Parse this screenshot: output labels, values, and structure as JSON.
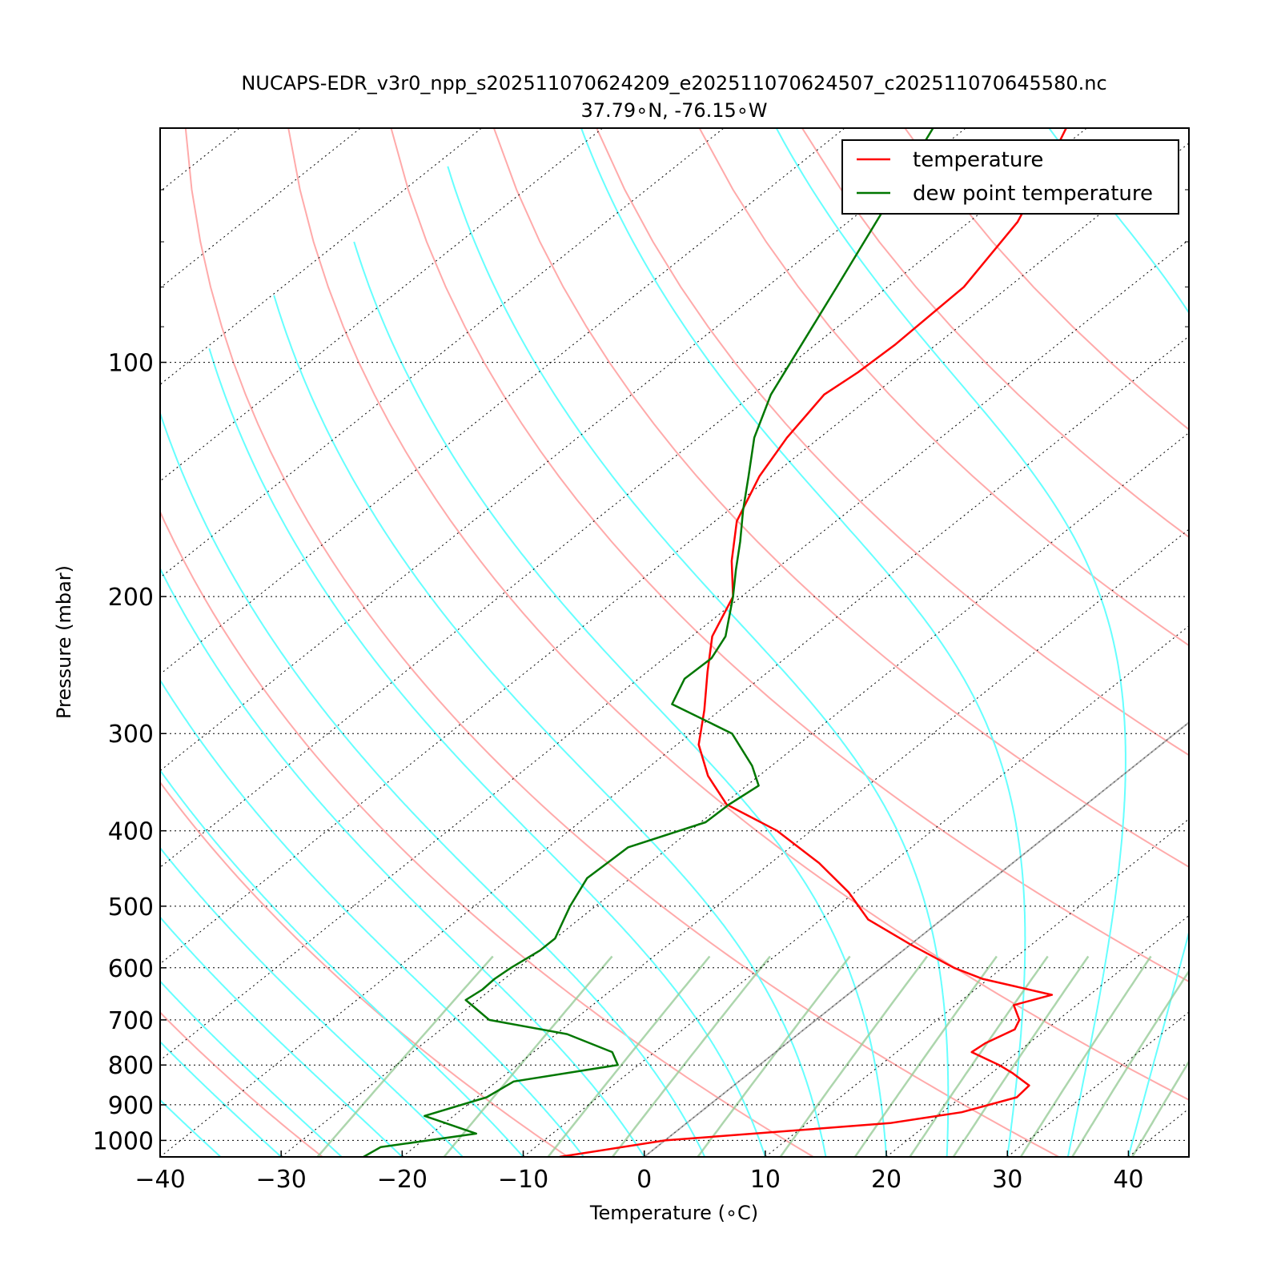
{
  "chart_data": {
    "type": "line",
    "title": "NUCAPS-EDR_v3r0_npp_s202511070624209_e202511070624507_c202511070645580.nc",
    "subtitle": "37.79∘N, -76.15∘W",
    "xlabel": "Temperature (∘C)",
    "ylabel": "Pressure (mbar)",
    "xlim": [
      -40,
      45
    ],
    "ylim": [
      1050,
      50
    ],
    "yscale": "log",
    "skew": true,
    "grid": true,
    "legend_position": "top-right",
    "x_ticks": [
      -40,
      -30,
      -20,
      -10,
      0,
      10,
      20,
      30,
      40
    ],
    "x_tick_labels": [
      "−40",
      "−30",
      "−20",
      "−10",
      "0",
      "10",
      "20",
      "30",
      "40"
    ],
    "y_ticks": [
      100,
      200,
      300,
      400,
      500,
      600,
      700,
      800,
      900,
      1000
    ],
    "y_tick_labels": [
      "100",
      "200",
      "300",
      "400",
      "500",
      "600",
      "700",
      "800",
      "900",
      "1000"
    ],
    "series": [
      {
        "name": "temperature",
        "color": "#ff0000",
        "points": [
          [
            1050,
            -7.0
          ],
          [
            1000,
            0.0
          ],
          [
            950,
            16.8
          ],
          [
            920,
            21.6
          ],
          [
            880,
            24.6
          ],
          [
            850,
            24.4
          ],
          [
            820,
            21.8
          ],
          [
            800,
            19.8
          ],
          [
            770,
            16.2
          ],
          [
            750,
            16.4
          ],
          [
            720,
            17.4
          ],
          [
            700,
            16.8
          ],
          [
            670,
            14.8
          ],
          [
            650,
            16.9
          ],
          [
            620,
            9.5
          ],
          [
            600,
            6.0
          ],
          [
            560,
            0.0
          ],
          [
            520,
            -6.1
          ],
          [
            480,
            -10.5
          ],
          [
            440,
            -16.0
          ],
          [
            400,
            -22.8
          ],
          [
            370,
            -29.7
          ],
          [
            340,
            -34.2
          ],
          [
            310,
            -38.2
          ],
          [
            280,
            -41.3
          ],
          [
            250,
            -45.0
          ],
          [
            225,
            -48.3
          ],
          [
            200,
            -50.7
          ],
          [
            180,
            -54.5
          ],
          [
            160,
            -58.2
          ],
          [
            140,
            -61.0
          ],
          [
            125,
            -62.7
          ],
          [
            110,
            -64.1
          ],
          [
            103,
            -63.6
          ],
          [
            95,
            -63.4
          ],
          [
            80,
            -63.7
          ],
          [
            66,
            -66.0
          ],
          [
            56,
            -69.3
          ],
          [
            50,
            -71.7
          ]
        ]
      },
      {
        "name": "dew point temperature",
        "color": "#007700",
        "points": [
          [
            1050,
            -23.2
          ],
          [
            1020,
            -22.8
          ],
          [
            980,
            -16.3
          ],
          [
            930,
            -22.4
          ],
          [
            880,
            -19.2
          ],
          [
            840,
            -18.6
          ],
          [
            800,
            -11.7
          ],
          [
            770,
            -13.5
          ],
          [
            730,
            -19.1
          ],
          [
            700,
            -27.0
          ],
          [
            660,
            -31.0
          ],
          [
            640,
            -30.7
          ],
          [
            620,
            -30.8
          ],
          [
            600,
            -30.6
          ],
          [
            570,
            -30.0
          ],
          [
            550,
            -30.0
          ],
          [
            500,
            -32.1
          ],
          [
            460,
            -33.6
          ],
          [
            420,
            -33.4
          ],
          [
            390,
            -29.6
          ],
          [
            370,
            -29.5
          ],
          [
            350,
            -29.0
          ],
          [
            330,
            -31.6
          ],
          [
            300,
            -36.6
          ],
          [
            275,
            -44.6
          ],
          [
            255,
            -46.2
          ],
          [
            240,
            -46.1
          ],
          [
            225,
            -47.2
          ],
          [
            200,
            -50.7
          ],
          [
            185,
            -53.2
          ],
          [
            170,
            -55.8
          ],
          [
            155,
            -58.8
          ],
          [
            140,
            -61.9
          ],
          [
            125,
            -65.4
          ],
          [
            110,
            -68.5
          ],
          [
            80,
            -74.2
          ],
          [
            60,
            -79.4
          ],
          [
            50,
            -82.7
          ]
        ]
      }
    ],
    "background_lines": {
      "isotherms_color": "#808080",
      "dry_adiabats_color": "#ffaaaa",
      "moist_adiabats_color": "#66ffff",
      "mixing_ratio_color": "#99cc99"
    }
  }
}
